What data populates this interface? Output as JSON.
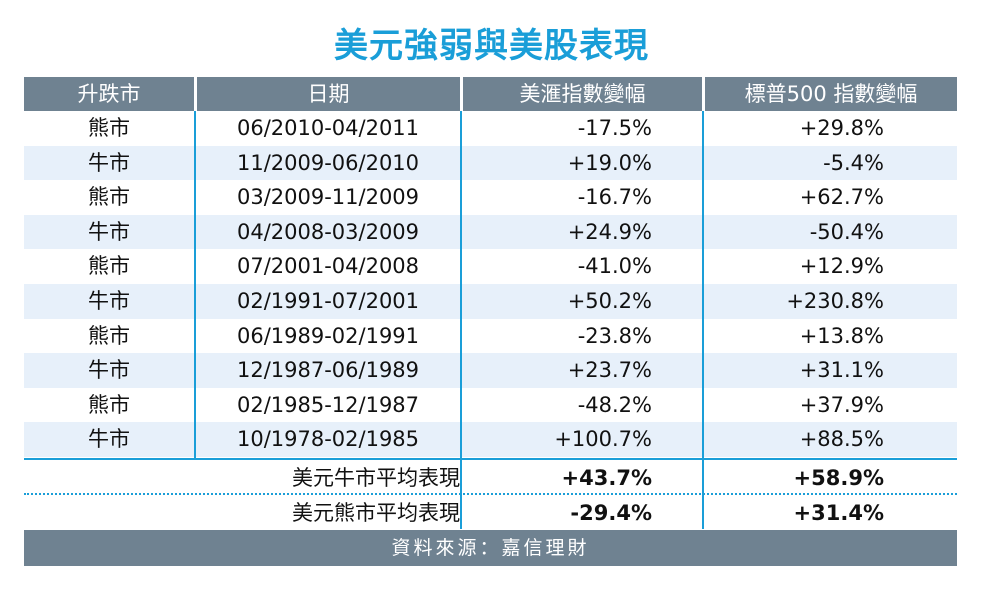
{
  "title": "美元強弱與美股表現",
  "headers": [
    "升跌市",
    "日期",
    "美滙指數變幅",
    "標普500 指數變幅"
  ],
  "rows": [
    [
      "熊市",
      "06/2010-04/2011",
      "-17.5%",
      "+29.8%"
    ],
    [
      "牛市",
      "11/2009-06/2010",
      "+19.0%",
      "-5.4%"
    ],
    [
      "熊市",
      "03/2009-11/2009",
      "-16.7%",
      "+62.7%"
    ],
    [
      "牛市",
      "04/2008-03/2009",
      "+24.9%",
      "-50.4%"
    ],
    [
      "熊市",
      "07/2001-04/2008",
      "-41.0%",
      "+12.9%"
    ],
    [
      "牛市",
      "02/1991-07/2001",
      "+50.2%",
      "+230.8%"
    ],
    [
      "熊市",
      "06/1989-02/1991",
      "-23.8%",
      "+13.8%"
    ],
    [
      "牛市",
      "12/1987-06/1989",
      "+23.7%",
      "+31.1%"
    ],
    [
      "熊市",
      "02/1985-12/1987",
      "-48.2%",
      "+37.9%"
    ],
    [
      "牛市",
      "10/1978-02/1985",
      "+100.7%",
      "+88.5%"
    ]
  ],
  "summary": [
    {
      "label": "美元牛市平均表現",
      "usd": "+43.7%",
      "sp500": "+58.9%"
    },
    {
      "label": "美元熊市平均表現",
      "usd": "-29.4%",
      "sp500": "+31.4%"
    }
  ],
  "source": "資料來源：嘉信理財",
  "colors": {
    "title": "#1a9ed8",
    "header_bg": "#6f8291",
    "alt_row": "#e7f0fa",
    "rule": "#1a9ed8"
  },
  "chart_data": {
    "type": "table",
    "title": "美元強弱與美股表現",
    "columns": [
      "升跌市",
      "日期",
      "美滙指數變幅",
      "標普500 指數變幅"
    ],
    "rows": [
      [
        "熊市",
        "06/2010-04/2011",
        "-17.5%",
        "+29.8%"
      ],
      [
        "牛市",
        "11/2009-06/2010",
        "+19.0%",
        "-5.4%"
      ],
      [
        "熊市",
        "03/2009-11/2009",
        "-16.7%",
        "+62.7%"
      ],
      [
        "牛市",
        "04/2008-03/2009",
        "+24.9%",
        "-50.4%"
      ],
      [
        "熊市",
        "07/2001-04/2008",
        "-41.0%",
        "+12.9%"
      ],
      [
        "牛市",
        "02/1991-07/2001",
        "+50.2%",
        "+230.8%"
      ],
      [
        "熊市",
        "06/1989-02/1991",
        "-23.8%",
        "+13.8%"
      ],
      [
        "牛市",
        "12/1987-06/1989",
        "+23.7%",
        "+31.1%"
      ],
      [
        "熊市",
        "02/1985-12/1987",
        "-48.2%",
        "+37.9%"
      ],
      [
        "牛市",
        "10/1978-02/1985",
        "+100.7%",
        "+88.5%"
      ]
    ],
    "summary_rows": [
      [
        "美元牛市平均表現",
        "+43.7%",
        "+58.9%"
      ],
      [
        "美元熊市平均表現",
        "-29.4%",
        "+31.4%"
      ]
    ]
  }
}
